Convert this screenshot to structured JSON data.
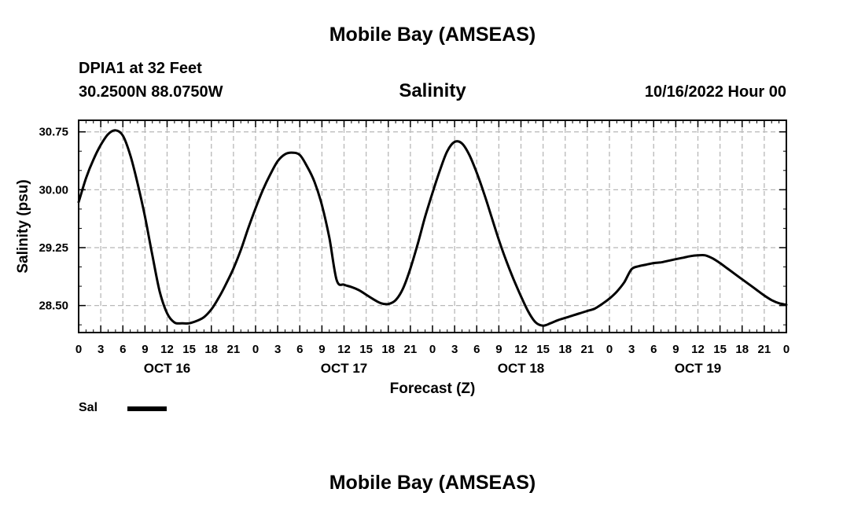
{
  "page": {
    "title_top": "Mobile Bay (AMSEAS)",
    "title_bottom": "Mobile Bay (AMSEAS)",
    "station": "DPIA1 at 32 Feet",
    "coords": "30.2500N  88.0750W",
    "datetime": "10/16/2022 Hour 00"
  },
  "chart_data": {
    "type": "line",
    "title": "Salinity",
    "xlabel": "Forecast (Z)",
    "ylabel": "Salinity (psu)",
    "ylim": [
      28.15,
      30.9
    ],
    "xlim": [
      0,
      96
    ],
    "yticks": [
      "30.75",
      "30.00",
      "29.25",
      "28.50"
    ],
    "ytick_values": [
      30.75,
      30.0,
      29.25,
      28.5
    ],
    "xtick_labels": [
      "0",
      "3",
      "6",
      "9",
      "12",
      "15",
      "18",
      "21",
      "0",
      "3",
      "6",
      "9",
      "12",
      "15",
      "18",
      "21",
      "0",
      "3",
      "6",
      "9",
      "12",
      "15",
      "18",
      "21",
      "0",
      "3",
      "6",
      "9",
      "12",
      "15",
      "18",
      "21",
      "0"
    ],
    "day_labels": [
      "OCT 16",
      "OCT 17",
      "OCT 18",
      "OCT 19"
    ],
    "grid": true,
    "legend": {
      "position": "bottom-left",
      "label": "Sal",
      "color": "#000000"
    },
    "series": [
      {
        "name": "Sal",
        "x": [
          0,
          1,
          2,
          3,
          4,
          5,
          6,
          7,
          8,
          9,
          10,
          11,
          12,
          13,
          14,
          15,
          16,
          17,
          18,
          19,
          20,
          21,
          22,
          23,
          24,
          25,
          26,
          27,
          28,
          29,
          30,
          31,
          32,
          33,
          34,
          35,
          36,
          37,
          38,
          39,
          40,
          41,
          42,
          43,
          44,
          45,
          46,
          47,
          48,
          49,
          50,
          51,
          52,
          53,
          54,
          55,
          56,
          57,
          58,
          59,
          60,
          61,
          62,
          63,
          64,
          65,
          66,
          67,
          68,
          69,
          70,
          71,
          72,
          73,
          74,
          75,
          76,
          77,
          78,
          79,
          80,
          81,
          82,
          83,
          84,
          85,
          86,
          87,
          88,
          89,
          90,
          91,
          92,
          93,
          94,
          95,
          96
        ],
        "values": [
          29.84,
          30.15,
          30.39,
          30.58,
          30.72,
          30.77,
          30.7,
          30.45,
          30.08,
          29.65,
          29.15,
          28.68,
          28.4,
          28.28,
          28.27,
          28.27,
          28.3,
          28.35,
          28.45,
          28.6,
          28.78,
          28.98,
          29.22,
          29.5,
          29.76,
          30.0,
          30.2,
          30.37,
          30.46,
          30.48,
          30.45,
          30.3,
          30.1,
          29.8,
          29.38,
          28.83,
          28.77,
          28.74,
          28.7,
          28.64,
          28.58,
          28.53,
          28.52,
          28.57,
          28.72,
          28.98,
          29.3,
          29.65,
          29.96,
          30.25,
          30.5,
          30.62,
          30.6,
          30.45,
          30.22,
          29.95,
          29.65,
          29.35,
          29.08,
          28.84,
          28.62,
          28.42,
          28.28,
          28.24,
          28.27,
          28.31,
          28.34,
          28.37,
          28.4,
          28.43,
          28.46,
          28.52,
          28.59,
          28.68,
          28.8,
          28.97,
          29.01,
          29.03,
          29.05,
          29.06,
          29.08,
          29.1,
          29.12,
          29.14,
          29.15,
          29.15,
          29.11,
          29.05,
          28.98,
          28.91,
          28.84,
          28.77,
          28.7,
          28.63,
          28.57,
          28.53,
          28.51
        ]
      }
    ]
  }
}
